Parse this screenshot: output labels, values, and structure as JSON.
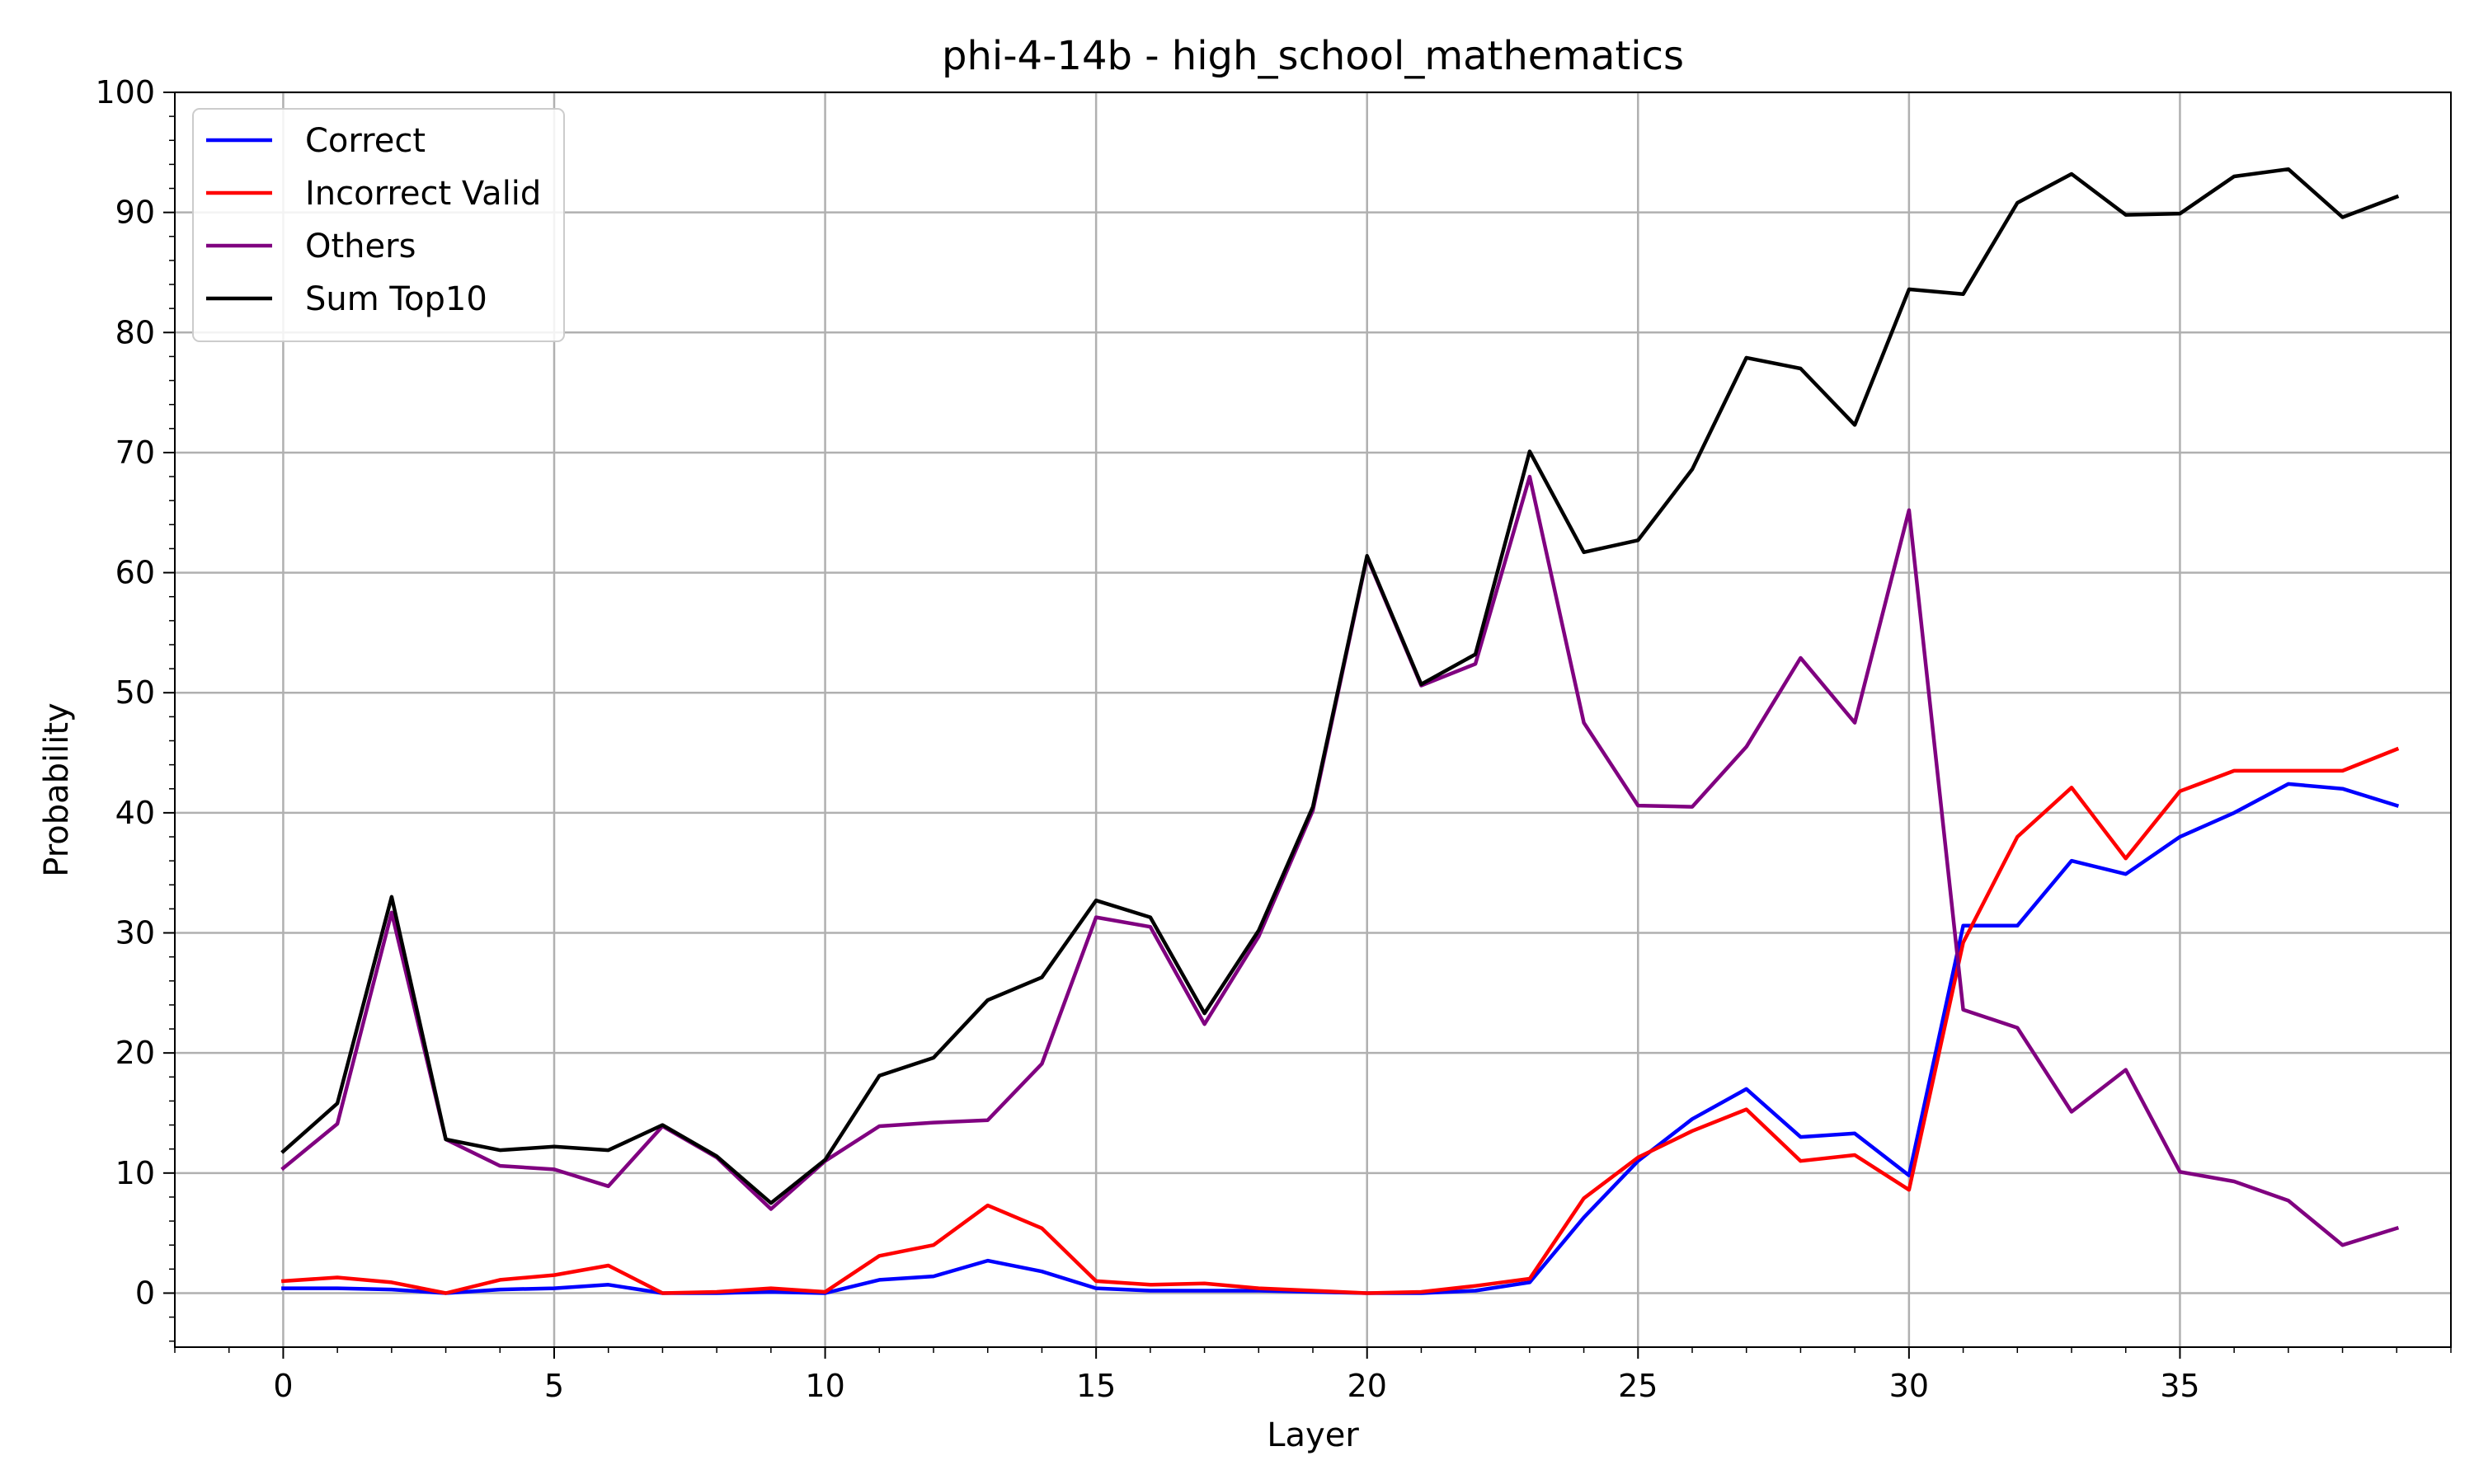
{
  "chart_data": {
    "type": "line",
    "title": "phi-4-14b - high_school_mathematics",
    "xlabel": "Layer",
    "ylabel": "Probability",
    "xlim": [
      -2,
      40
    ],
    "ylim": [
      -4.5,
      100
    ],
    "xticks": [
      0,
      5,
      10,
      15,
      20,
      25,
      30,
      35
    ],
    "yticks": [
      0,
      10,
      20,
      30,
      40,
      50,
      60,
      70,
      80,
      90,
      100
    ],
    "grid": true,
    "legend_position": "top-left",
    "x": [
      0,
      1,
      2,
      3,
      4,
      5,
      6,
      7,
      8,
      9,
      10,
      11,
      12,
      13,
      14,
      15,
      16,
      17,
      18,
      19,
      20,
      21,
      22,
      23,
      24,
      25,
      26,
      27,
      28,
      29,
      30,
      31,
      32,
      33,
      34,
      35,
      36,
      37,
      38,
      39
    ],
    "series": [
      {
        "name": "Correct",
        "color": "#0000ff",
        "values": [
          0.4,
          0.4,
          0.3,
          0.0,
          0.3,
          0.4,
          0.7,
          0.0,
          0.0,
          0.1,
          0.0,
          1.1,
          1.4,
          2.7,
          1.8,
          0.4,
          0.2,
          0.2,
          0.2,
          0.1,
          0.0,
          0.0,
          0.2,
          0.9,
          6.3,
          11.0,
          14.5,
          17.0,
          13.0,
          13.3,
          9.8,
          30.6,
          30.6,
          36.0,
          34.9,
          38.0,
          40.0,
          42.4,
          42.0,
          40.6
        ]
      },
      {
        "name": "Incorrect Valid",
        "color": "#ff0000",
        "values": [
          1.0,
          1.3,
          0.9,
          0.0,
          1.1,
          1.5,
          2.3,
          0.0,
          0.1,
          0.4,
          0.1,
          3.1,
          4.0,
          7.3,
          5.4,
          1.0,
          0.7,
          0.8,
          0.4,
          0.2,
          0.0,
          0.1,
          0.6,
          1.2,
          7.9,
          11.3,
          13.5,
          15.3,
          11.0,
          11.5,
          8.6,
          29.2,
          38.0,
          42.1,
          36.2,
          41.8,
          43.5,
          43.5,
          43.5,
          45.3
        ]
      },
      {
        "name": "Others",
        "color": "#800080",
        "values": [
          10.4,
          14.1,
          31.7,
          12.8,
          10.6,
          10.3,
          8.9,
          13.9,
          11.3,
          7.0,
          11.0,
          13.9,
          14.2,
          14.4,
          19.1,
          31.3,
          30.5,
          22.4,
          29.7,
          40.2,
          61.3,
          50.6,
          52.4,
          68.0,
          47.5,
          40.6,
          40.5,
          45.5,
          52.9,
          47.5,
          65.2,
          23.6,
          22.1,
          15.1,
          18.6,
          10.1,
          9.3,
          7.7,
          4.0,
          5.4
        ]
      },
      {
        "name": "Sum Top10",
        "color": "#000000",
        "values": [
          11.8,
          15.8,
          33.0,
          12.8,
          11.9,
          12.2,
          11.9,
          14.0,
          11.4,
          7.5,
          11.1,
          18.1,
          19.6,
          24.4,
          26.3,
          32.7,
          31.3,
          23.3,
          30.2,
          40.5,
          61.4,
          50.7,
          53.2,
          70.1,
          61.7,
          62.7,
          68.6,
          77.9,
          77.0,
          72.3,
          83.6,
          83.2,
          90.8,
          93.2,
          89.8,
          89.9,
          93.0,
          93.6,
          89.6,
          91.3
        ]
      }
    ]
  }
}
